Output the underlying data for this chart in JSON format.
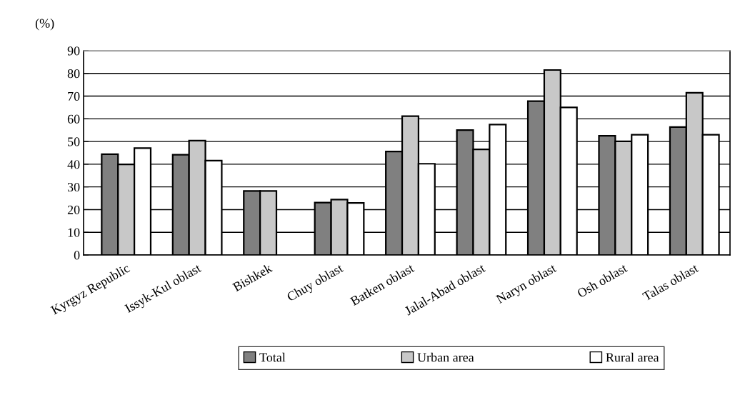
{
  "chart_data": {
    "type": "bar",
    "ylabel": "(%)",
    "categories": [
      "Kyrgyz Republic",
      "Issyk-Kul oblast",
      "Bishkek",
      "Chuy oblast",
      "Batken oblast",
      "Jalal-Abad oblast",
      "Naryn oblast",
      "Osh oblast",
      "Talas oblast"
    ],
    "series": [
      {
        "name": "Total",
        "color": "#808080",
        "values": [
          44.4,
          44.2,
          28.2,
          23.1,
          45.6,
          55.0,
          67.8,
          52.5,
          56.4
        ]
      },
      {
        "name": "Urban area",
        "color": "#c8c8c8",
        "values": [
          39.9,
          50.4,
          28.2,
          24.4,
          61.2,
          46.5,
          81.5,
          50.1,
          71.5
        ]
      },
      {
        "name": "Rural area",
        "color": "#ffffff",
        "values": [
          47.1,
          41.6,
          null,
          22.9,
          40.2,
          57.5,
          65.0,
          53.0,
          53.0
        ]
      }
    ],
    "ylim": [
      0,
      90
    ],
    "yticks": [
      0,
      10,
      20,
      30,
      40,
      50,
      60,
      70,
      80,
      90
    ],
    "grid": "y",
    "legend": "bottom"
  }
}
